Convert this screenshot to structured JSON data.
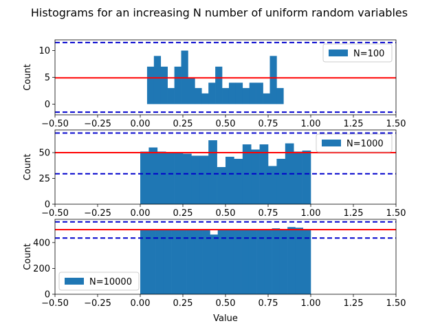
{
  "chart_data": {
    "type": "bar",
    "title": "Histograms for an increasing N number of uniform random variables",
    "xlabel": "Value",
    "xlim": [
      -0.5,
      1.5
    ],
    "xticks": [
      "-0.50",
      "-0.25",
      "0.00",
      "0.25",
      "0.50",
      "0.75",
      "1.00",
      "1.25",
      "1.50"
    ],
    "bin_edges": [
      0.0,
      0.04,
      0.08,
      0.12,
      0.16,
      0.2,
      0.24,
      0.28,
      0.32,
      0.36,
      0.4,
      0.44,
      0.48,
      0.52,
      0.56,
      0.6,
      0.64,
      0.68,
      0.72,
      0.76,
      0.8,
      0.84,
      0.88,
      0.92,
      0.96,
      1.0
    ],
    "bar_color": "#1f77b4",
    "mean_line_color": "#ff0000",
    "bound_line_color": "#0000cc",
    "panels": [
      {
        "legend": "N=100",
        "legend_loc": "upper right",
        "ylabel": "Count",
        "ylim": [
          -2,
          12
        ],
        "yticks": [
          "0",
          "5",
          "10"
        ],
        "counts": [
          7,
          9,
          7,
          3,
          7,
          10,
          5,
          3,
          2,
          4,
          7,
          3,
          4,
          4,
          3,
          4,
          4,
          2,
          9,
          3
        ],
        "bin_start_index": 1,
        "mean": 4.9,
        "upper": 11.5,
        "lower": -1.5
      },
      {
        "legend": "N=1000",
        "legend_loc": "upper right",
        "ylabel": "Count",
        "ylim": [
          0,
          72
        ],
        "yticks": [
          "0",
          "25",
          "50"
        ],
        "counts": [
          51,
          55,
          51,
          50,
          50,
          49,
          47,
          47,
          62,
          36,
          46,
          44,
          58,
          53,
          58,
          37,
          44,
          59,
          51,
          52
        ],
        "bin_start_index": 0,
        "bin_width_override": 0.05,
        "mean": 50,
        "upper": 69,
        "lower": 29.5
      },
      {
        "legend": "N=10000",
        "legend_loc": "lower left",
        "ylabel": "Count",
        "ylim": [
          0,
          580
        ],
        "yticks": [
          "0",
          "200",
          "400"
        ],
        "counts": [
          505,
          500,
          498,
          500,
          497,
          500,
          500,
          502,
          505,
          462,
          500,
          503,
          499,
          500,
          505,
          500,
          498,
          510,
          503,
          520,
          515,
          500
        ],
        "bin_start_index": 0,
        "bin_width_override": 0.04545,
        "mean": 500,
        "upper": 560,
        "lower": 435
      }
    ]
  }
}
